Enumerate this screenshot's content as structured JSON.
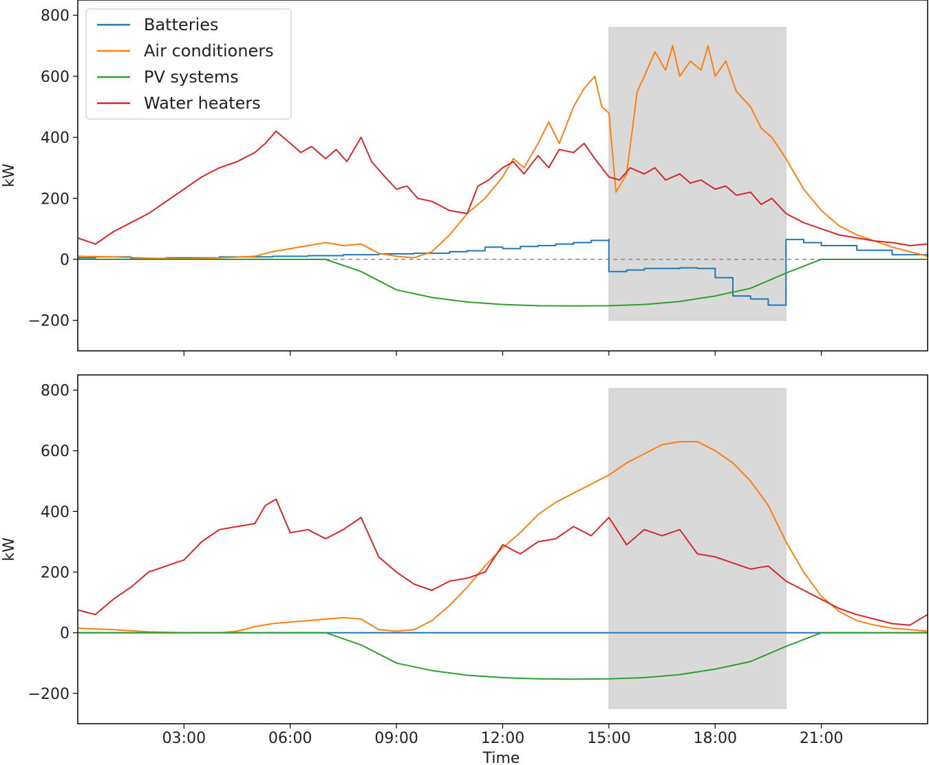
{
  "colors": {
    "batteries": "#1f77b4",
    "air_conditioners": "#ff7f0e",
    "pv_systems": "#2ca02c",
    "water_heaters": "#d62728",
    "shaded_window": "#d9d9d9",
    "zero_line": "#888888"
  },
  "chart_data": [
    {
      "type": "line",
      "panel": "top",
      "title": "",
      "xlabel": "",
      "ylabel": "kW",
      "xlim": [
        0,
        24
      ],
      "ylim": [
        -300,
        850
      ],
      "yticks": [
        -200,
        0,
        200,
        400,
        600,
        800
      ],
      "ytick_labels": [
        "−200",
        "0",
        "200",
        "400",
        "600",
        "800"
      ],
      "xticks": [
        3,
        6,
        9,
        12,
        15,
        18,
        21
      ],
      "xtick_labels": [
        "",
        "",
        "",
        "",
        "",
        "",
        ""
      ],
      "shaded_window": {
        "x": [
          15,
          20
        ],
        "y": [
          -200,
          760
        ]
      },
      "zero_line": {
        "y": 0,
        "style": "dashed",
        "x": [
          7,
          21
        ]
      },
      "legend": {
        "placement": "upper-left",
        "entries": [
          "Batteries",
          "Air conditioners",
          "PV systems",
          "Water heaters"
        ]
      },
      "series": [
        {
          "name": "Batteries",
          "color_key": "batteries",
          "step": true,
          "x": [
            0,
            0.5,
            1.5,
            2.5,
            4,
            5.5,
            6.5,
            7.5,
            8.5,
            9.5,
            10.5,
            11,
            11.5,
            12,
            12.5,
            13,
            13.5,
            14,
            14.5,
            15,
            15,
            15.5,
            16,
            17,
            17.5,
            18,
            18.5,
            19,
            19.5,
            20,
            20,
            20.5,
            21,
            22,
            23,
            24
          ],
          "y": [
            5,
            8,
            3,
            5,
            8,
            10,
            12,
            15,
            18,
            20,
            25,
            28,
            40,
            35,
            42,
            45,
            50,
            55,
            62,
            65,
            -40,
            -35,
            -30,
            -28,
            -30,
            -60,
            -120,
            -130,
            -150,
            -140,
            65,
            55,
            45,
            30,
            15,
            8
          ]
        },
        {
          "name": "Air conditioners",
          "color_key": "air_conditioners",
          "x": [
            0,
            1,
            2,
            3,
            4,
            5,
            5.5,
            6,
            6.5,
            7,
            7.5,
            8,
            8.5,
            9,
            9.5,
            10,
            10.5,
            11,
            11.5,
            12,
            12.3,
            12.6,
            13,
            13.3,
            13.6,
            14,
            14.3,
            14.6,
            14.8,
            15,
            15.2,
            15.5,
            15.8,
            16,
            16.3,
            16.6,
            16.8,
            17,
            17.3,
            17.6,
            17.8,
            18,
            18.3,
            18.6,
            19,
            19.3,
            19.6,
            20,
            20.5,
            21,
            21.5,
            22,
            22.5,
            23,
            23.5,
            24
          ],
          "y": [
            10,
            8,
            4,
            2,
            5,
            10,
            25,
            35,
            45,
            55,
            45,
            50,
            20,
            10,
            5,
            25,
            80,
            150,
            200,
            270,
            330,
            300,
            380,
            450,
            380,
            500,
            560,
            600,
            500,
            480,
            220,
            280,
            550,
            600,
            680,
            620,
            700,
            600,
            650,
            620,
            700,
            600,
            650,
            550,
            500,
            430,
            400,
            330,
            230,
            160,
            110,
            80,
            60,
            40,
            25,
            10
          ]
        },
        {
          "name": "PV systems",
          "color_key": "pv_systems",
          "x": [
            0,
            6,
            7,
            8,
            9,
            10,
            11,
            12,
            13,
            14,
            15,
            16,
            17,
            18,
            19,
            20,
            21,
            22,
            23,
            24
          ],
          "y": [
            0,
            0,
            0,
            -40,
            -100,
            -125,
            -140,
            -148,
            -152,
            -153,
            -152,
            -148,
            -138,
            -120,
            -95,
            -45,
            0,
            0,
            0,
            0
          ]
        },
        {
          "name": "Water heaters",
          "color_key": "water_heaters",
          "x": [
            0,
            0.5,
            1,
            1.5,
            2,
            2.5,
            3,
            3.5,
            4,
            4.5,
            5,
            5.3,
            5.6,
            6,
            6.3,
            6.6,
            7,
            7.3,
            7.6,
            8,
            8.3,
            8.6,
            9,
            9.3,
            9.6,
            10,
            10.5,
            11,
            11.3,
            11.6,
            12,
            12.3,
            12.6,
            13,
            13.3,
            13.6,
            14,
            14.3,
            14.6,
            15,
            15.3,
            15.6,
            16,
            16.3,
            16.6,
            17,
            17.3,
            17.6,
            18,
            18.3,
            18.6,
            19,
            19.3,
            19.6,
            20,
            20.5,
            21,
            21.5,
            22,
            22.5,
            23,
            23.5,
            24
          ],
          "y": [
            70,
            50,
            90,
            120,
            150,
            190,
            230,
            270,
            300,
            320,
            350,
            380,
            420,
            380,
            350,
            370,
            330,
            360,
            320,
            400,
            320,
            280,
            230,
            240,
            200,
            190,
            160,
            150,
            240,
            260,
            300,
            320,
            280,
            340,
            300,
            360,
            350,
            380,
            330,
            270,
            260,
            300,
            280,
            300,
            260,
            280,
            250,
            260,
            230,
            240,
            210,
            220,
            180,
            200,
            150,
            120,
            100,
            80,
            70,
            60,
            55,
            45,
            50
          ]
        }
      ]
    },
    {
      "type": "line",
      "panel": "bottom",
      "title": "",
      "xlabel": "Time",
      "ylabel": "kW",
      "xlim": [
        0,
        24
      ],
      "ylim": [
        -300,
        850
      ],
      "yticks": [
        -200,
        0,
        200,
        400,
        600,
        800
      ],
      "ytick_labels": [
        "−200",
        "0",
        "200",
        "400",
        "600",
        "800"
      ],
      "xticks": [
        3,
        6,
        9,
        12,
        15,
        18,
        21
      ],
      "xtick_labels": [
        "03:00",
        "06:00",
        "09:00",
        "12:00",
        "15:00",
        "18:00",
        "21:00"
      ],
      "shaded_window": {
        "x": [
          15,
          20
        ],
        "y": [
          -250,
          805
        ]
      },
      "series": [
        {
          "name": "Batteries",
          "color_key": "batteries",
          "x": [
            0,
            24
          ],
          "y": [
            0,
            0
          ]
        },
        {
          "name": "Air conditioners",
          "color_key": "air_conditioners",
          "x": [
            0,
            1,
            2,
            3,
            4,
            4.5,
            5,
            5.5,
            6,
            6.5,
            7,
            7.5,
            8,
            8.5,
            9,
            9.5,
            10,
            10.5,
            11,
            11.5,
            12,
            12.5,
            13,
            13.5,
            14,
            14.5,
            15,
            15.5,
            16,
            16.5,
            17,
            17.5,
            18,
            18.5,
            19,
            19.5,
            20,
            20.5,
            21,
            21.5,
            22,
            22.5,
            23,
            23.5,
            24
          ],
          "y": [
            15,
            10,
            3,
            0,
            0,
            5,
            20,
            30,
            35,
            40,
            45,
            50,
            45,
            10,
            5,
            10,
            40,
            90,
            150,
            220,
            280,
            330,
            390,
            430,
            460,
            490,
            520,
            560,
            590,
            620,
            630,
            630,
            600,
            560,
            500,
            420,
            300,
            200,
            120,
            70,
            40,
            25,
            15,
            10,
            5
          ]
        },
        {
          "name": "PV systems",
          "color_key": "pv_systems",
          "x": [
            0,
            6,
            7,
            8,
            9,
            10,
            11,
            12,
            13,
            14,
            15,
            16,
            17,
            18,
            19,
            20,
            21,
            22,
            23,
            24
          ],
          "y": [
            0,
            0,
            0,
            -40,
            -100,
            -125,
            -140,
            -148,
            -152,
            -153,
            -152,
            -148,
            -138,
            -120,
            -95,
            -45,
            0,
            0,
            0,
            0
          ]
        },
        {
          "name": "Water heaters",
          "color_key": "water_heaters",
          "x": [
            0,
            0.5,
            1,
            1.5,
            2,
            2.5,
            3,
            3.5,
            4,
            4.5,
            5,
            5.3,
            5.6,
            6,
            6.5,
            7,
            7.5,
            8,
            8.5,
            9,
            9.5,
            10,
            10.5,
            11,
            11.5,
            12,
            12.5,
            13,
            13.5,
            14,
            14.5,
            15,
            15.5,
            16,
            16.5,
            17,
            17.5,
            18,
            18.5,
            19,
            19.5,
            20,
            20.5,
            21,
            21.5,
            22,
            22.5,
            23,
            23.5,
            24
          ],
          "y": [
            75,
            60,
            110,
            150,
            200,
            220,
            240,
            300,
            340,
            350,
            360,
            420,
            440,
            330,
            340,
            310,
            340,
            380,
            250,
            200,
            160,
            140,
            170,
            180,
            200,
            290,
            260,
            300,
            310,
            350,
            320,
            380,
            290,
            340,
            320,
            340,
            260,
            250,
            230,
            210,
            220,
            170,
            140,
            110,
            80,
            60,
            45,
            30,
            25,
            60
          ]
        }
      ]
    }
  ]
}
